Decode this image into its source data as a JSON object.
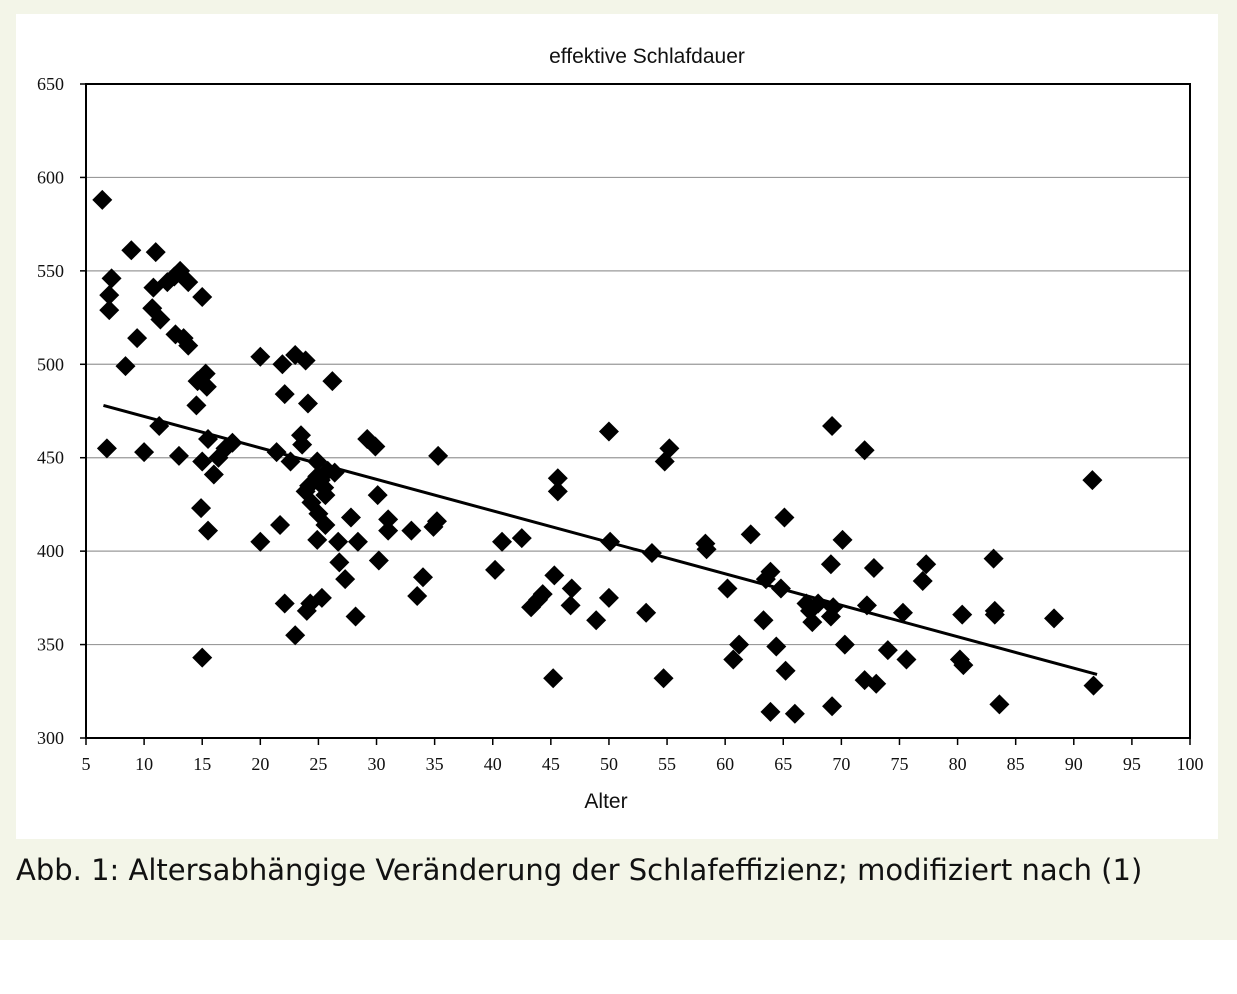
{
  "caption": "Abb. 1: Altersabhängige Veränderung der Schlafeffizienz; modifiziert nach (1)",
  "chart_data": {
    "type": "scatter",
    "title": "effektive Schlafdauer",
    "xlabel": "Alter",
    "ylabel": "",
    "xlim": [
      5,
      100
    ],
    "ylim": [
      300,
      650
    ],
    "xticks": [
      5,
      10,
      15,
      20,
      25,
      30,
      35,
      40,
      45,
      50,
      55,
      60,
      65,
      70,
      75,
      80,
      85,
      90,
      95,
      100
    ],
    "yticks": [
      300,
      350,
      400,
      450,
      500,
      550,
      600,
      650
    ],
    "grid": "horizontal",
    "marker": "diamond",
    "colors": {
      "marker": "#000000",
      "grid": "#9a9a9a",
      "trend": "#000000"
    },
    "trendline": {
      "x": [
        6.5,
        92
      ],
      "y": [
        478,
        334
      ]
    },
    "points": [
      [
        6.4,
        588
      ],
      [
        7.2,
        546
      ],
      [
        7.0,
        537
      ],
      [
        7.0,
        529
      ],
      [
        6.8,
        455
      ],
      [
        8.9,
        561
      ],
      [
        8.4,
        499
      ],
      [
        9.4,
        514
      ],
      [
        10.0,
        453
      ],
      [
        11.0,
        560
      ],
      [
        10.8,
        541
      ],
      [
        10.7,
        530
      ],
      [
        11.4,
        524
      ],
      [
        11.3,
        467
      ],
      [
        12.0,
        544
      ],
      [
        12.6,
        547
      ],
      [
        13.1,
        550
      ],
      [
        13.8,
        544
      ],
      [
        12.7,
        516
      ],
      [
        13.4,
        514
      ],
      [
        13.8,
        510
      ],
      [
        13.0,
        451
      ],
      [
        14.6,
        491
      ],
      [
        14.5,
        478
      ],
      [
        15.0,
        536
      ],
      [
        15.3,
        495
      ],
      [
        15.4,
        488
      ],
      [
        15.5,
        460
      ],
      [
        15.0,
        448
      ],
      [
        14.9,
        423
      ],
      [
        15.5,
        411
      ],
      [
        15.0,
        343
      ],
      [
        16.0,
        441
      ],
      [
        16.4,
        450
      ],
      [
        17.0,
        455
      ],
      [
        17.6,
        458
      ],
      [
        20.0,
        504
      ],
      [
        20.0,
        405
      ],
      [
        21.4,
        453
      ],
      [
        21.7,
        414
      ],
      [
        21.9,
        500
      ],
      [
        22.1,
        484
      ],
      [
        22.1,
        372
      ],
      [
        22.6,
        448
      ],
      [
        23.0,
        505
      ],
      [
        23.0,
        355
      ],
      [
        23.5,
        462
      ],
      [
        23.6,
        457
      ],
      [
        23.9,
        502
      ],
      [
        24.1,
        479
      ],
      [
        23.9,
        432
      ],
      [
        24.2,
        435
      ],
      [
        24.4,
        426
      ],
      [
        24.3,
        372
      ],
      [
        24.0,
        368
      ],
      [
        24.9,
        448
      ],
      [
        24.9,
        440
      ],
      [
        25.0,
        420
      ],
      [
        24.9,
        406
      ],
      [
        25.3,
        375
      ],
      [
        25.2,
        438
      ],
      [
        25.5,
        434
      ],
      [
        25.6,
        430
      ],
      [
        25.8,
        443
      ],
      [
        25.6,
        414
      ],
      [
        26.2,
        491
      ],
      [
        26.4,
        442
      ],
      [
        26.7,
        405
      ],
      [
        26.8,
        394
      ],
      [
        27.3,
        385
      ],
      [
        27.8,
        418
      ],
      [
        28.2,
        365
      ],
      [
        28.4,
        405
      ],
      [
        29.2,
        460
      ],
      [
        29.9,
        456
      ],
      [
        30.1,
        430
      ],
      [
        30.2,
        395
      ],
      [
        31.0,
        417
      ],
      [
        31.0,
        411
      ],
      [
        33.0,
        411
      ],
      [
        33.5,
        376
      ],
      [
        34.0,
        386
      ],
      [
        34.9,
        413
      ],
      [
        35.2,
        416
      ],
      [
        35.3,
        451
      ],
      [
        40.2,
        390
      ],
      [
        40.8,
        405
      ],
      [
        42.5,
        407
      ],
      [
        43.3,
        370
      ],
      [
        43.9,
        374
      ],
      [
        44.3,
        377
      ],
      [
        45.3,
        387
      ],
      [
        45.2,
        332
      ],
      [
        45.6,
        439
      ],
      [
        45.6,
        432
      ],
      [
        46.8,
        380
      ],
      [
        46.7,
        371
      ],
      [
        48.9,
        363
      ],
      [
        50.0,
        464
      ],
      [
        50.1,
        405
      ],
      [
        50.0,
        375
      ],
      [
        53.2,
        367
      ],
      [
        53.7,
        399
      ],
      [
        54.7,
        332
      ],
      [
        54.8,
        448
      ],
      [
        55.2,
        455
      ],
      [
        58.3,
        404
      ],
      [
        58.4,
        401
      ],
      [
        60.2,
        380
      ],
      [
        60.7,
        342
      ],
      [
        61.2,
        350
      ],
      [
        62.2,
        409
      ],
      [
        63.3,
        363
      ],
      [
        63.5,
        385
      ],
      [
        63.9,
        389
      ],
      [
        64.4,
        349
      ],
      [
        63.9,
        314
      ],
      [
        64.8,
        380
      ],
      [
        65.1,
        418
      ],
      [
        65.2,
        336
      ],
      [
        66.0,
        313
      ],
      [
        67.0,
        372
      ],
      [
        67.3,
        368
      ],
      [
        67.5,
        362
      ],
      [
        68.0,
        372
      ],
      [
        69.2,
        467
      ],
      [
        69.1,
        393
      ],
      [
        69.3,
        370
      ],
      [
        69.1,
        365
      ],
      [
        69.2,
        317
      ],
      [
        70.1,
        406
      ],
      [
        70.3,
        350
      ],
      [
        72.0,
        454
      ],
      [
        72.2,
        371
      ],
      [
        72.0,
        331
      ],
      [
        72.8,
        391
      ],
      [
        73.0,
        329
      ],
      [
        74.0,
        347
      ],
      [
        75.3,
        367
      ],
      [
        75.6,
        342
      ],
      [
        77.0,
        384
      ],
      [
        77.3,
        393
      ],
      [
        80.2,
        342
      ],
      [
        80.4,
        366
      ],
      [
        80.5,
        339
      ],
      [
        83.1,
        396
      ],
      [
        83.2,
        368
      ],
      [
        83.2,
        366
      ],
      [
        83.6,
        318
      ],
      [
        88.3,
        364
      ],
      [
        91.6,
        438
      ],
      [
        91.7,
        328
      ]
    ]
  }
}
